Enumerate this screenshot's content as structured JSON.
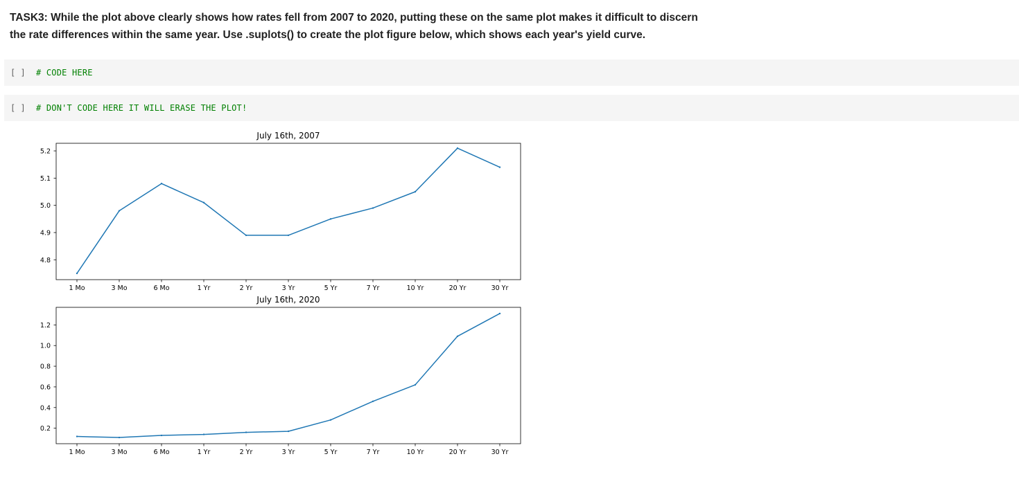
{
  "task": {
    "text": "TASK3: While the plot above clearly shows how rates fell from 2007 to 2020, putting these on the same plot makes it difficult to discern the rate differences within the same year. Use .suplots() to create the plot figure below, which shows each year's yield curve."
  },
  "cells": [
    {
      "prompt": "[ ]",
      "code": "# CODE HERE"
    },
    {
      "prompt": "[ ]",
      "code": "# DON'T CODE HERE IT WILL ERASE THE PLOT!"
    }
  ],
  "colors": {
    "line": "#1f77b4",
    "comment": "#008000",
    "cell_bg": "#f5f5f5"
  },
  "chart_data": [
    {
      "type": "line",
      "title": "July 16th, 2007",
      "categories": [
        "1 Mo",
        "3 Mo",
        "6 Mo",
        "1 Yr",
        "2 Yr",
        "3 Yr",
        "5 Yr",
        "7 Yr",
        "10 Yr",
        "20 Yr",
        "30 Yr"
      ],
      "values": [
        4.75,
        4.98,
        5.08,
        5.01,
        4.89,
        4.89,
        4.95,
        4.99,
        5.05,
        5.21,
        5.14
      ],
      "yticks": [
        "4.8",
        "4.9",
        "5.0",
        "5.1",
        "5.2"
      ],
      "ylim": [
        4.727,
        5.228
      ],
      "xlabel": "",
      "ylabel": "",
      "grid": false
    },
    {
      "type": "line",
      "title": "July 16th, 2020",
      "categories": [
        "1 Mo",
        "3 Mo",
        "6 Mo",
        "1 Yr",
        "2 Yr",
        "3 Yr",
        "5 Yr",
        "7 Yr",
        "10 Yr",
        "20 Yr",
        "30 Yr"
      ],
      "values": [
        0.12,
        0.11,
        0.13,
        0.14,
        0.16,
        0.17,
        0.28,
        0.46,
        0.62,
        1.09,
        1.31
      ],
      "yticks": [
        "0.2",
        "0.4",
        "0.6",
        "0.8",
        "1.0",
        "1.2"
      ],
      "ylim": [
        0.05,
        1.37
      ],
      "xlabel": "",
      "ylabel": "",
      "grid": false
    }
  ]
}
